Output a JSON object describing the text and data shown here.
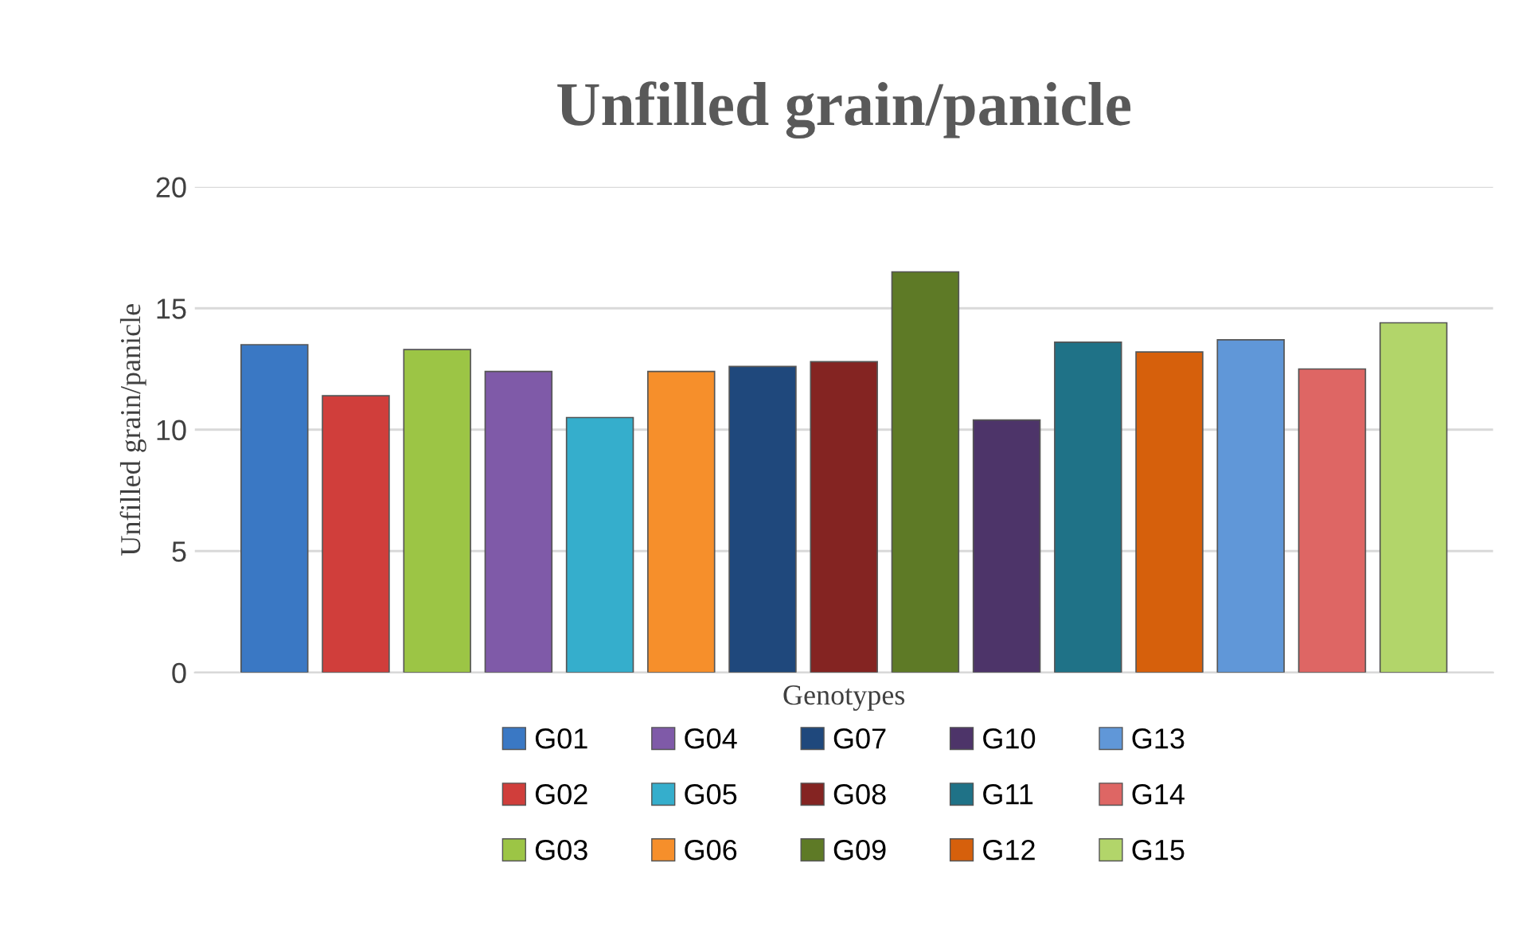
{
  "chart_data": {
    "type": "bar",
    "title": "Unfilled grain/panicle",
    "xlabel": "Genotypes",
    "ylabel": "Unfilled grain/panicle",
    "categories": [
      null
    ],
    "series": [
      {
        "name": "G01",
        "color": "#3a78c4",
        "values": [
          13.5
        ]
      },
      {
        "name": "G02",
        "color": "#d03e3b",
        "values": [
          11.4
        ]
      },
      {
        "name": "G03",
        "color": "#9cc545",
        "values": [
          13.3
        ]
      },
      {
        "name": "G04",
        "color": "#7f5aa8",
        "values": [
          12.4
        ]
      },
      {
        "name": "G05",
        "color": "#35aecc",
        "values": [
          10.5
        ]
      },
      {
        "name": "G06",
        "color": "#f68f2b",
        "values": [
          12.4
        ]
      },
      {
        "name": "G07",
        "color": "#1f487c",
        "values": [
          12.6
        ]
      },
      {
        "name": "G08",
        "color": "#842422",
        "values": [
          12.8
        ]
      },
      {
        "name": "G09",
        "color": "#5e7a26",
        "values": [
          16.5
        ]
      },
      {
        "name": "G10",
        "color": "#4d3469",
        "values": [
          10.4
        ]
      },
      {
        "name": "G11",
        "color": "#1f7287",
        "values": [
          13.6
        ]
      },
      {
        "name": "G12",
        "color": "#d6600c",
        "values": [
          13.2
        ]
      },
      {
        "name": "G13",
        "color": "#6097d8",
        "values": [
          13.7
        ]
      },
      {
        "name": "G14",
        "color": "#de6664",
        "values": [
          12.5
        ]
      },
      {
        "name": "G15",
        "color": "#b2d56a",
        "values": [
          14.4
        ]
      }
    ],
    "ylim": [
      0,
      20
    ],
    "yticks": [
      0,
      5,
      10,
      15,
      20
    ],
    "grid": "y",
    "legend": "bottom"
  }
}
